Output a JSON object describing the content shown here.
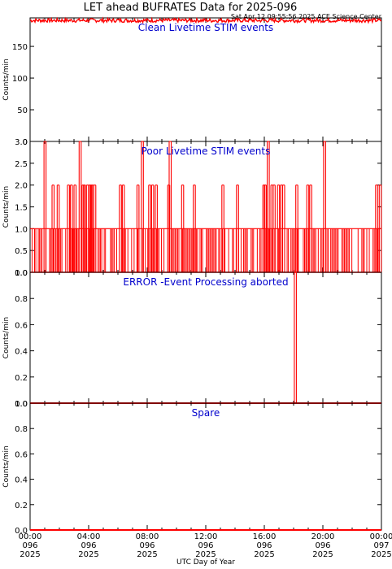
{
  "title": "LET ahead BUFRATES Data for 2025-096",
  "timestamp": "Sat Apr 12 09:55:56 2025 ACE Science Center",
  "xlabel": "UTC Day of Year",
  "colors": {
    "data": "#ff0000",
    "panel_title": "#0000cc",
    "axes": "#000000"
  },
  "x_ticks": [
    {
      "time": "00:00",
      "doy": "096",
      "year": "2025"
    },
    {
      "time": "04:00",
      "doy": "096",
      "year": "2025"
    },
    {
      "time": "08:00",
      "doy": "096",
      "year": "2025"
    },
    {
      "time": "12:00",
      "doy": "096",
      "year": "2025"
    },
    {
      "time": "16:00",
      "doy": "096",
      "year": "2025"
    },
    {
      "time": "20:00",
      "doy": "096",
      "year": "2025"
    },
    {
      "time": "00:00",
      "doy": "097",
      "year": "2025"
    }
  ],
  "chart_data": [
    {
      "type": "line",
      "title": "Clean Livetime STIM events",
      "ylabel": "Counts/min",
      "xlim": [
        0,
        24
      ],
      "ylim": [
        0,
        195
      ],
      "yticks": [
        0,
        50,
        100,
        150
      ],
      "series": [
        {
          "pattern": "flat_noisy",
          "x": [
            0,
            24
          ],
          "values": [
            191,
            191
          ],
          "noise_range": [
            188,
            194
          ]
        }
      ]
    },
    {
      "type": "line",
      "title": "Poor Livetime STIM events",
      "ylabel": "Counts/min",
      "xlim": [
        0,
        24
      ],
      "ylim": [
        0,
        3
      ],
      "yticks": [
        0.0,
        0.5,
        1.0,
        1.5,
        2.0,
        2.5,
        3.0
      ],
      "series": [
        {
          "pattern": "spikes",
          "baseline_x_range": [
            0,
            24
          ],
          "baseline_level": 1,
          "spikes_3": [
            0.95,
            3.35,
            7.6,
            9.5,
            16.2,
            20.05
          ],
          "spikes_2": [
            1.5,
            1.85,
            2.55,
            2.75,
            3.0,
            3.55,
            3.65,
            3.85,
            4.0,
            4.1,
            4.2,
            4.35,
            6.1,
            6.3,
            7.3,
            8.1,
            8.3,
            8.55,
            9.4,
            10.35,
            11.15,
            13.1,
            14.1,
            15.9,
            16.0,
            16.45,
            16.6,
            16.9,
            17.1,
            17.25,
            18.15,
            18.9,
            19.1,
            23.6,
            23.85
          ]
        }
      ]
    },
    {
      "type": "line",
      "title": "ERROR -Event Processing aborted",
      "ylabel": "Counts/min",
      "xlim": [
        0,
        24
      ],
      "ylim": [
        0,
        1
      ],
      "yticks": [
        0.0,
        0.2,
        0.4,
        0.6,
        0.8,
        1.0
      ],
      "series": [
        {
          "pattern": "spikes",
          "baseline_level": 0,
          "spikes_1": [
            18.05
          ]
        }
      ]
    },
    {
      "type": "line",
      "title": "Spare",
      "ylabel": "Counts/min",
      "xlim": [
        0,
        24
      ],
      "ylim": [
        0,
        1
      ],
      "yticks": [
        0.0,
        0.2,
        0.4,
        0.6,
        0.8,
        1.0
      ],
      "series": [
        {
          "pattern": "flat",
          "x": [
            0,
            24
          ],
          "values": [
            0,
            0
          ]
        }
      ]
    }
  ]
}
